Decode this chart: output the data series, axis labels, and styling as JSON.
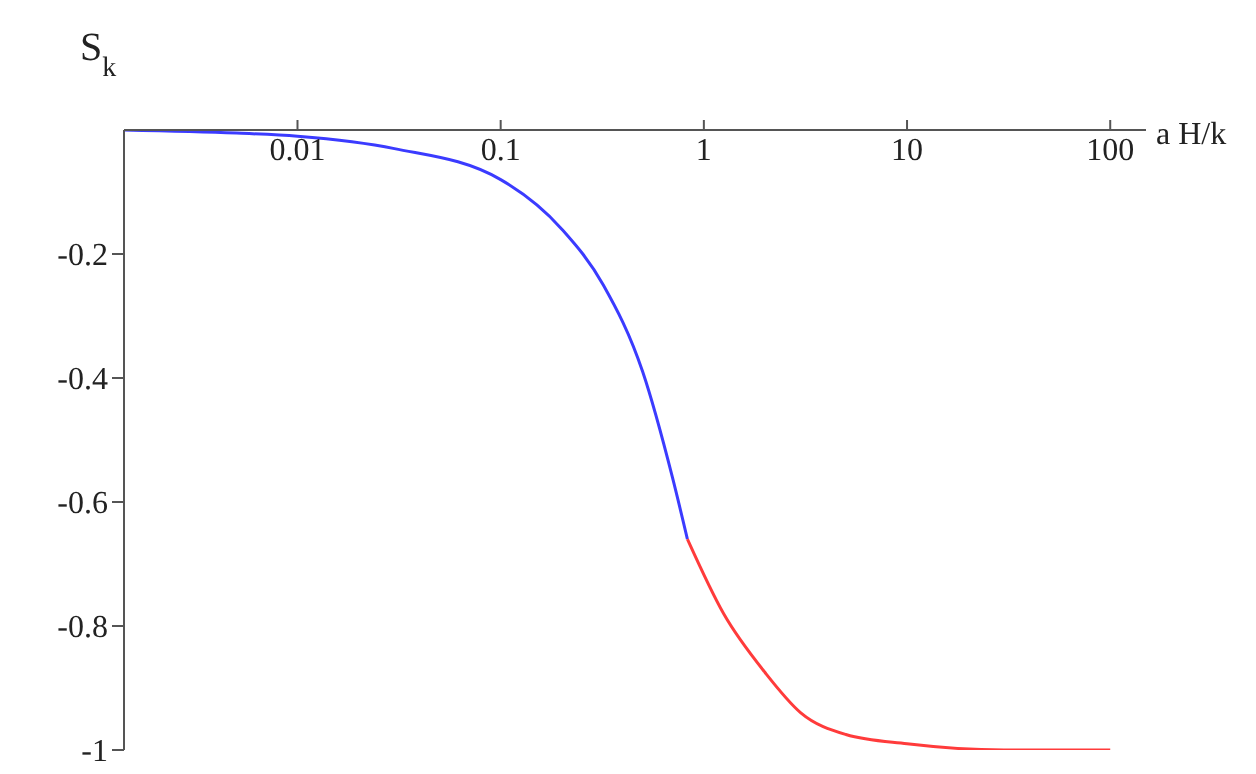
{
  "chart_data": {
    "type": "line",
    "xlabel": "a H/k",
    "ylabel": "S$_{k}$",
    "log": "x",
    "grid": false,
    "marker": "none",
    "line_style": "solid",
    "xlim": [
      0.0014,
      150
    ],
    "xticks": [
      0.01,
      0.1,
      1,
      10,
      100
    ],
    "ylim": [
      -1,
      0
    ],
    "yticks": [
      -1,
      -0.8,
      -0.6,
      -0.4,
      -0.2
    ],
    "series": [
      {
        "color": "#3b3bff",
        "x": [
          0.0014,
          0.005,
          0.01,
          0.03,
          0.1,
          0.2,
          0.32,
          0.5,
          0.7,
          0.83
        ],
        "values": [
          0,
          -0.005,
          -0.01,
          -0.03,
          -0.08,
          -0.16,
          -0.25,
          -0.39,
          -0.56,
          -0.66
        ]
      },
      {
        "color": "#ff3b3b",
        "x": [
          0.83,
          1.25,
          2,
          3,
          5,
          10,
          30,
          100
        ],
        "values": [
          -0.66,
          -0.78,
          -0.875,
          -0.94,
          -0.975,
          -0.99,
          -1,
          -1
        ]
      }
    ]
  }
}
